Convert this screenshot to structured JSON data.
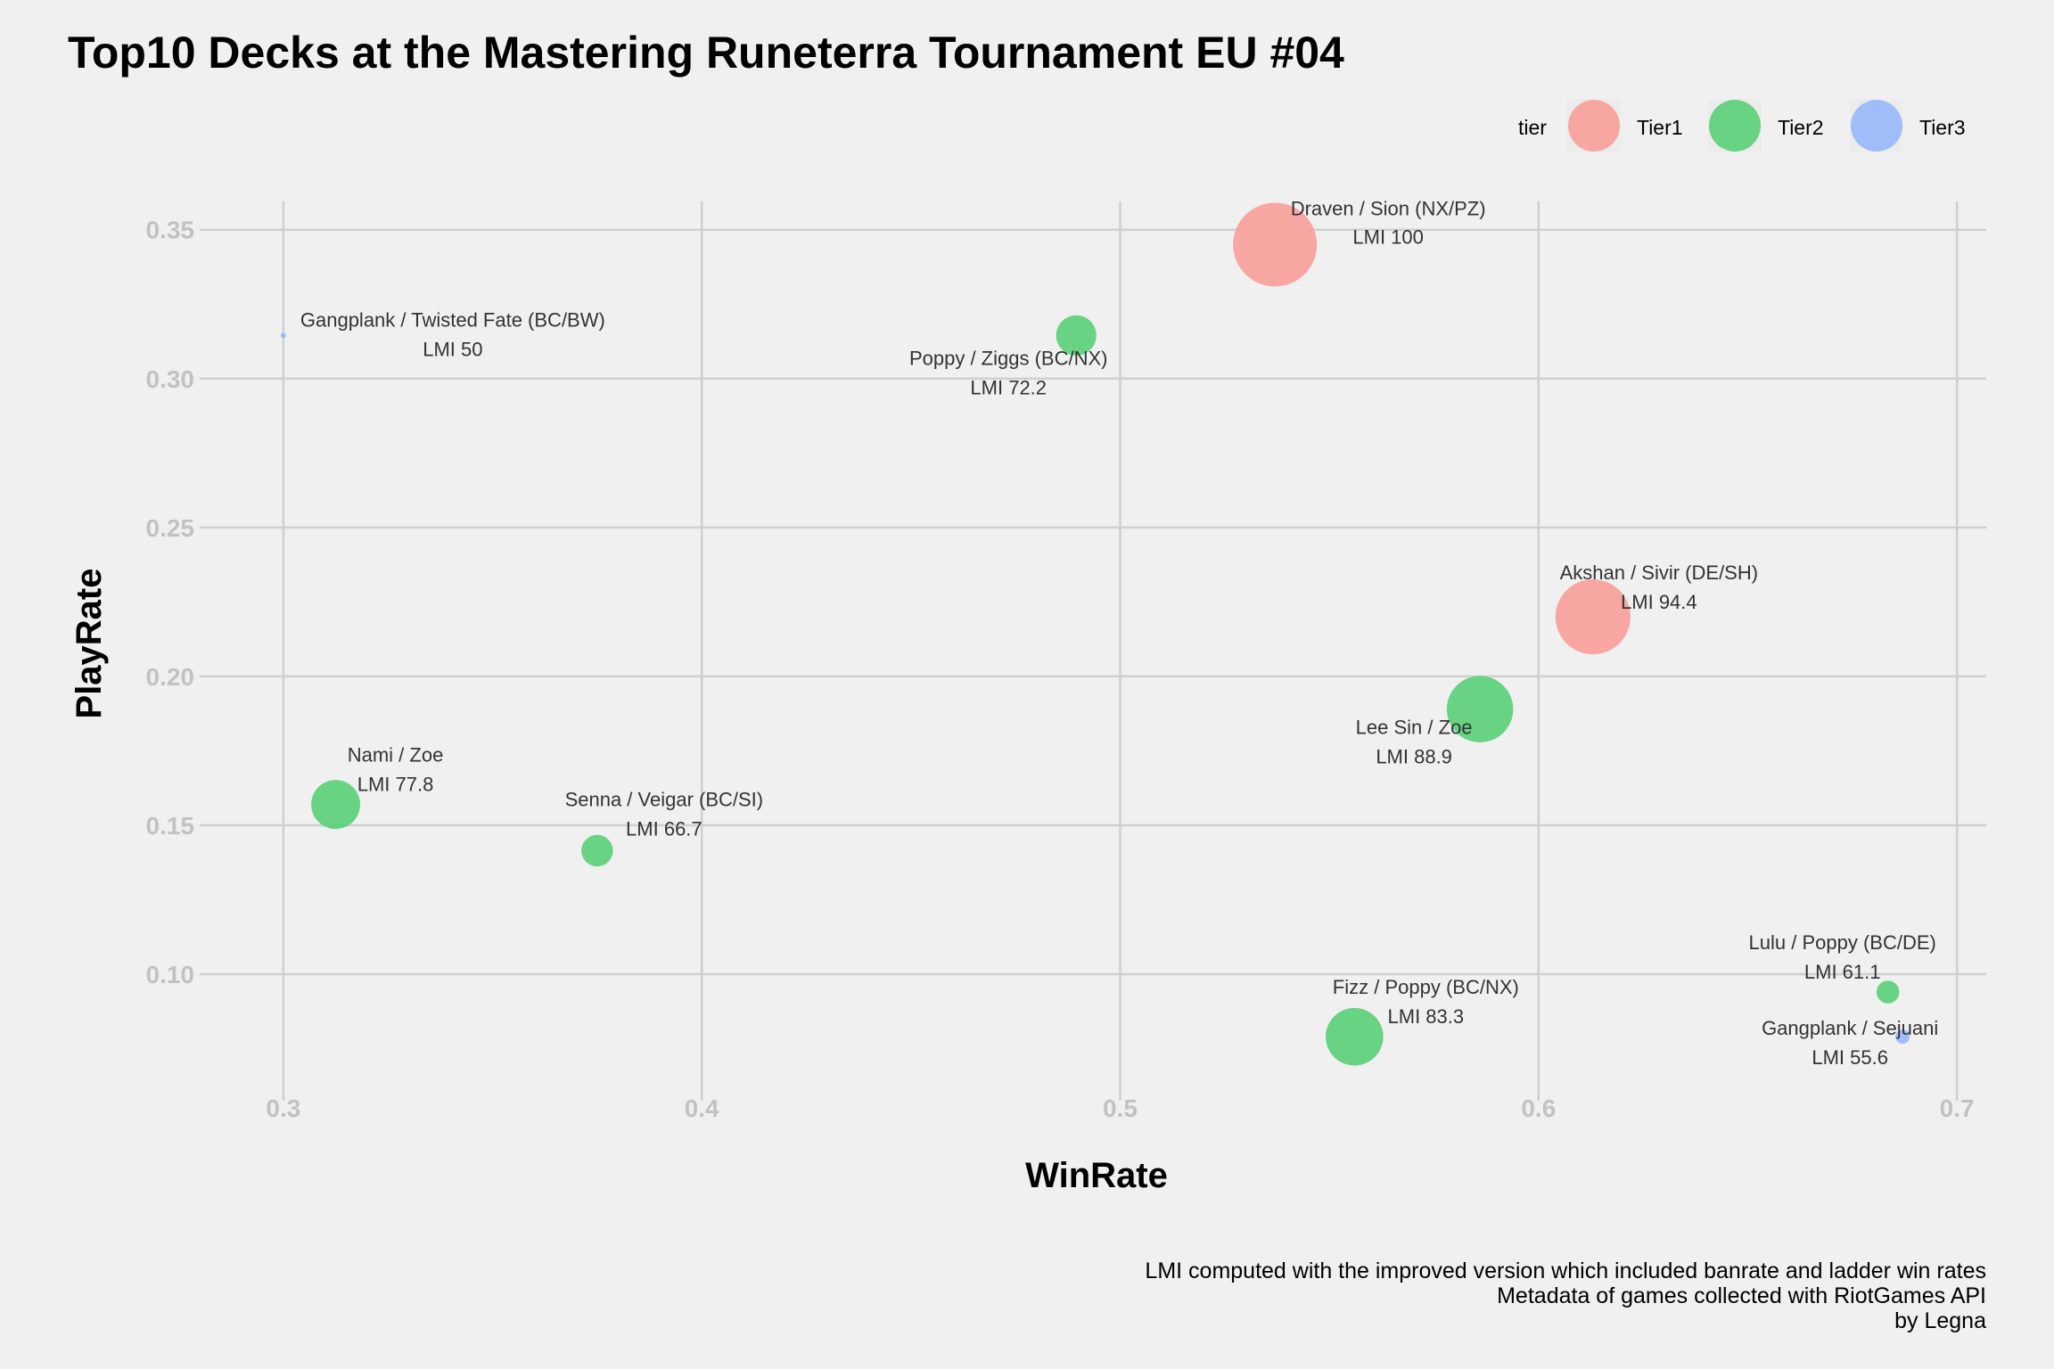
{
  "chart_data": {
    "type": "scatter",
    "title": "Top10 Decks at the Mastering Runeterra Tournament EU #04",
    "xlabel": "WinRate",
    "ylabel": "PlayRate",
    "xlim": [
      0.28,
      0.707
    ],
    "ylim": [
      0.0575,
      0.3595
    ],
    "x_ticks": [
      0.3,
      0.4,
      0.5,
      0.6,
      0.7
    ],
    "x_tick_labels": [
      "0.3",
      "0.4",
      "0.5",
      "0.6",
      "0.7"
    ],
    "y_ticks": [
      0.1,
      0.15,
      0.2,
      0.25,
      0.3,
      0.35
    ],
    "y_tick_labels": [
      "0.10",
      "0.15",
      "0.20",
      "0.25",
      "0.30",
      "0.35"
    ],
    "grid": true,
    "legend": {
      "title": "tier",
      "placement": "top-right",
      "entries": [
        {
          "name": "Tier1",
          "color": "#f8a09a"
        },
        {
          "name": "Tier2",
          "color": "#5bd07a"
        },
        {
          "name": "Tier3",
          "color": "#98b8f8"
        }
      ]
    },
    "points": [
      {
        "deck": "Draven / Sion (NX/PZ)",
        "lmi": "LMI 100",
        "x": 0.537,
        "y": 0.345,
        "tier": "Tier1"
      },
      {
        "deck": "Akshan / Sivir (DE/SH)",
        "lmi": "LMI 94.4",
        "x": 0.613,
        "y": 0.22,
        "tier": "Tier1"
      },
      {
        "deck": "Lee Sin / Zoe",
        "lmi": "LMI 88.9",
        "x": 0.586,
        "y": 0.189,
        "tier": "Tier2"
      },
      {
        "deck": "Fizz / Poppy (BC/NX)",
        "lmi": "LMI 83.3",
        "x": 0.556,
        "y": 0.079,
        "tier": "Tier2"
      },
      {
        "deck": "Nami / Zoe",
        "lmi": "LMI 77.8",
        "x": 0.3125,
        "y": 0.157,
        "tier": "Tier2"
      },
      {
        "deck": "Poppy / Ziggs (BC/NX)",
        "lmi": "LMI 72.2",
        "x": 0.4895,
        "y": 0.3145,
        "tier": "Tier2"
      },
      {
        "deck": "Senna / Veigar (BC/SI)",
        "lmi": "LMI 66.7",
        "x": 0.375,
        "y": 0.1415,
        "tier": "Tier2"
      },
      {
        "deck": "Lulu / Poppy (BC/DE)",
        "lmi": "LMI 61.1",
        "x": 0.6835,
        "y": 0.094,
        "tier": "Tier2"
      },
      {
        "deck": "Gangplank / Sejuani",
        "lmi": "LMI 55.6",
        "x": 0.687,
        "y": 0.079,
        "tier": "Tier3"
      },
      {
        "deck": "Gangplank / Twisted Fate (BC/BW)",
        "lmi": "LMI 50",
        "x": 0.3,
        "y": 0.3145,
        "tier": "Tier3"
      }
    ]
  },
  "caption": {
    "line1": "LMI computed with the improved version which included banrate and ladder win rates",
    "line2": "Metadata of games collected with RiotGames API",
    "line3": "by Legna"
  }
}
